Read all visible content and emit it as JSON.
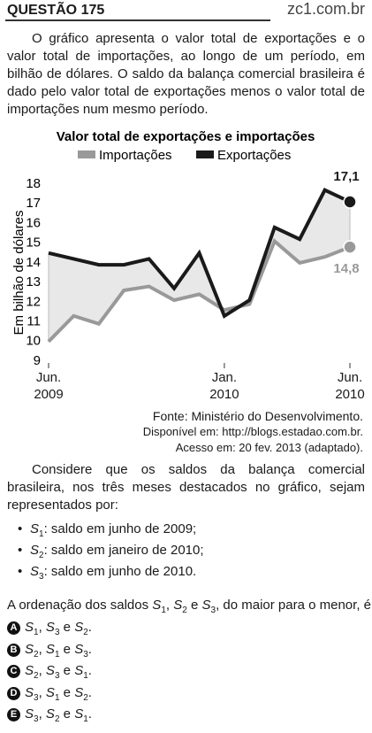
{
  "header": {
    "title": "QUESTÃO 175",
    "site": "zc1.com.br"
  },
  "intro": "O gráfico apresenta o valor total de exportações e o valor total de importações, ao longo de um período, em bilhão de dólares. O saldo da balança comercial brasileira é dado pelo valor total de exportações menos o valor total de importações num mesmo período.",
  "chart_data": {
    "type": "line",
    "title": "Valor total de exportações e importações",
    "y_label": "Em bilhão de dólares",
    "categories": [
      "Jun.\n2009",
      null,
      null,
      null,
      null,
      null,
      null,
      "Jan.\n2010",
      null,
      null,
      null,
      null,
      "Jun.\n2010"
    ],
    "series": [
      {
        "name": "Importações",
        "color": "#999999",
        "values": [
          10.0,
          11.3,
          10.9,
          12.6,
          12.8,
          12.1,
          12.4,
          11.6,
          11.9,
          15.1,
          14.0,
          14.3,
          14.8
        ],
        "value_labels": [
          null,
          null,
          null,
          null,
          null,
          null,
          null,
          null,
          null,
          null,
          null,
          null,
          "14,8"
        ]
      },
      {
        "name": "Exportações",
        "color": "#1a1a1a",
        "values": [
          14.5,
          14.2,
          13.9,
          13.9,
          14.2,
          12.7,
          14.5,
          11.3,
          12.1,
          15.8,
          15.2,
          17.7,
          17.1
        ],
        "value_labels": [
          null,
          null,
          null,
          null,
          null,
          null,
          null,
          null,
          null,
          null,
          null,
          null,
          "17,1"
        ]
      }
    ],
    "ylim": [
      9,
      18
    ],
    "yticks": [
      9,
      10,
      11,
      12,
      13,
      14,
      15,
      16,
      17,
      18
    ],
    "grid": false,
    "fill_between": true
  },
  "source": [
    "Fonte: Ministério do Desenvolvimento.",
    "Disponível em: http://blogs.estadao.com.br.",
    "Acesso em: 20 fev. 2013 (adaptado)."
  ],
  "consider": "Considere que os saldos da balança comercial brasileira, nos três meses destacados no gráfico, sejam representados por:",
  "bullets": [
    [
      {
        "text": "S",
        "style": "i"
      },
      {
        "text": "1",
        "style": "sub"
      },
      ": saldo em junho de 2009;"
    ],
    [
      {
        "text": "S",
        "style": "i"
      },
      {
        "text": "2",
        "style": "sub"
      },
      ": saldo em janeiro de 2010;"
    ],
    [
      {
        "text": "S",
        "style": "i"
      },
      {
        "text": "3",
        "style": "sub"
      },
      ": saldo em junho de 2010."
    ]
  ],
  "question": [
    "A ordenação dos saldos ",
    {
      "text": "S",
      "style": "i"
    },
    {
      "text": "1",
      "style": "sub"
    },
    ", ",
    {
      "text": "S",
      "style": "i"
    },
    {
      "text": "2",
      "style": "sub"
    },
    " e ",
    {
      "text": "S",
      "style": "i"
    },
    {
      "text": "3",
      "style": "sub"
    },
    ", do maior para o menor, é"
  ],
  "options": [
    {
      "letter": "A",
      "text": [
        {
          "text": "S",
          "style": "i"
        },
        {
          "text": "1",
          "style": "sub"
        },
        ", ",
        {
          "text": "S",
          "style": "i"
        },
        {
          "text": "3",
          "style": "sub"
        },
        " e ",
        {
          "text": "S",
          "style": "i"
        },
        {
          "text": "2",
          "style": "sub"
        },
        "."
      ]
    },
    {
      "letter": "B",
      "text": [
        {
          "text": "S",
          "style": "i"
        },
        {
          "text": "2",
          "style": "sub"
        },
        ", ",
        {
          "text": "S",
          "style": "i"
        },
        {
          "text": "1",
          "style": "sub"
        },
        " e ",
        {
          "text": "S",
          "style": "i"
        },
        {
          "text": "3",
          "style": "sub"
        },
        "."
      ]
    },
    {
      "letter": "C",
      "text": [
        {
          "text": "S",
          "style": "i"
        },
        {
          "text": "2",
          "style": "sub"
        },
        ", ",
        {
          "text": "S",
          "style": "i"
        },
        {
          "text": "3",
          "style": "sub"
        },
        " e ",
        {
          "text": "S",
          "style": "i"
        },
        {
          "text": "1",
          "style": "sub"
        },
        "."
      ]
    },
    {
      "letter": "D",
      "text": [
        {
          "text": "S",
          "style": "i"
        },
        {
          "text": "3",
          "style": "sub"
        },
        ", ",
        {
          "text": "S",
          "style": "i"
        },
        {
          "text": "1",
          "style": "sub"
        },
        " e ",
        {
          "text": "S",
          "style": "i"
        },
        {
          "text": "2",
          "style": "sub"
        },
        "."
      ]
    },
    {
      "letter": "E",
      "text": [
        {
          "text": "S",
          "style": "i"
        },
        {
          "text": "3",
          "style": "sub"
        },
        ", ",
        {
          "text": "S",
          "style": "i"
        },
        {
          "text": "2",
          "style": "sub"
        },
        " e ",
        {
          "text": "S",
          "style": "i"
        },
        {
          "text": "1",
          "style": "sub"
        },
        "."
      ]
    }
  ]
}
